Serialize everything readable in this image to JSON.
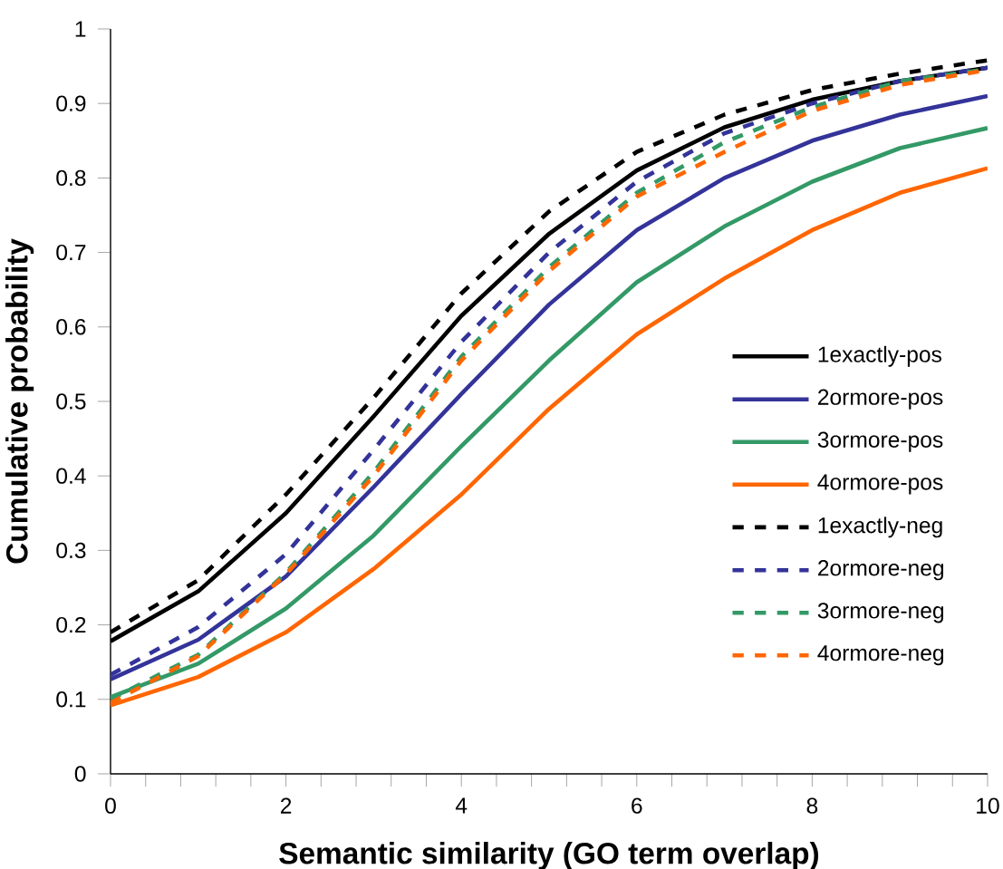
{
  "chart_data": {
    "type": "line",
    "xlabel": "Semantic similarity (GO term overlap)",
    "ylabel": "Cumulative probability",
    "x": [
      0,
      1,
      2,
      3,
      4,
      5,
      6,
      7,
      8,
      9,
      10
    ],
    "xlim": [
      0,
      10
    ],
    "ylim": [
      0,
      1
    ],
    "xticks": [
      0,
      {
        "value": 0.4,
        "label": null
      },
      {
        "value": 0.8,
        "label": null
      },
      {
        "value": 1.2,
        "label": null
      },
      {
        "value": 1.6,
        "label": null
      },
      2,
      {
        "value": 2.4,
        "label": null
      },
      {
        "value": 2.8,
        "label": null
      },
      {
        "value": 3.2,
        "label": null
      },
      {
        "value": 3.6,
        "label": null
      },
      4,
      {
        "value": 4.4,
        "label": null
      },
      {
        "value": 4.8,
        "label": null
      },
      {
        "value": 5.2,
        "label": null
      },
      {
        "value": 5.6,
        "label": null
      },
      6,
      {
        "value": 6.4,
        "label": null
      },
      {
        "value": 6.8,
        "label": null
      },
      {
        "value": 7.2,
        "label": null
      },
      {
        "value": 7.6,
        "label": null
      },
      8,
      {
        "value": 8.4,
        "label": null
      },
      {
        "value": 8.8,
        "label": null
      },
      {
        "value": 9.2,
        "label": null
      },
      {
        "value": 9.6,
        "label": null
      },
      10
    ],
    "yticks": [
      0,
      0.1,
      0.2,
      0.3,
      0.4,
      0.5,
      0.6,
      0.7,
      0.8,
      0.9,
      1
    ],
    "grid": false,
    "legend": "right",
    "marker": "none",
    "series": [
      {
        "name": "1exactly-pos",
        "color": "#000000",
        "line_style": "solid",
        "values": [
          0.178,
          0.245,
          0.35,
          0.48,
          0.615,
          0.725,
          0.81,
          0.868,
          0.905,
          0.93,
          0.948
        ]
      },
      {
        "name": "2ormore-pos",
        "color": "#333399",
        "line_style": "solid",
        "values": [
          0.127,
          0.18,
          0.265,
          0.385,
          0.51,
          0.63,
          0.73,
          0.8,
          0.85,
          0.885,
          0.91
        ]
      },
      {
        "name": "3ormore-pos",
        "color": "#339966",
        "line_style": "solid",
        "values": [
          0.103,
          0.148,
          0.222,
          0.32,
          0.44,
          0.555,
          0.66,
          0.735,
          0.795,
          0.84,
          0.867
        ]
      },
      {
        "name": "4ormore-pos",
        "color": "#ff6600",
        "line_style": "solid",
        "values": [
          0.092,
          0.13,
          0.19,
          0.275,
          0.375,
          0.49,
          0.59,
          0.665,
          0.73,
          0.78,
          0.813
        ]
      },
      {
        "name": "1exactly-neg",
        "color": "#000000",
        "line_style": "dashed",
        "values": [
          0.19,
          0.26,
          0.375,
          0.505,
          0.645,
          0.755,
          0.835,
          0.885,
          0.918,
          0.94,
          0.958
        ]
      },
      {
        "name": "2ormore-neg",
        "color": "#333399",
        "line_style": "dashed",
        "values": [
          0.133,
          0.197,
          0.295,
          0.435,
          0.58,
          0.7,
          0.795,
          0.86,
          0.9,
          0.93,
          0.948
        ]
      },
      {
        "name": "3ormore-neg",
        "color": "#339966",
        "line_style": "dashed",
        "values": [
          0.1,
          0.16,
          0.27,
          0.405,
          0.56,
          0.68,
          0.78,
          0.848,
          0.895,
          0.93,
          0.946
        ]
      },
      {
        "name": "4ormore-neg",
        "color": "#ff6600",
        "line_style": "dashed",
        "values": [
          0.095,
          0.158,
          0.268,
          0.4,
          0.555,
          0.675,
          0.775,
          0.835,
          0.89,
          0.925,
          0.945
        ]
      }
    ]
  }
}
